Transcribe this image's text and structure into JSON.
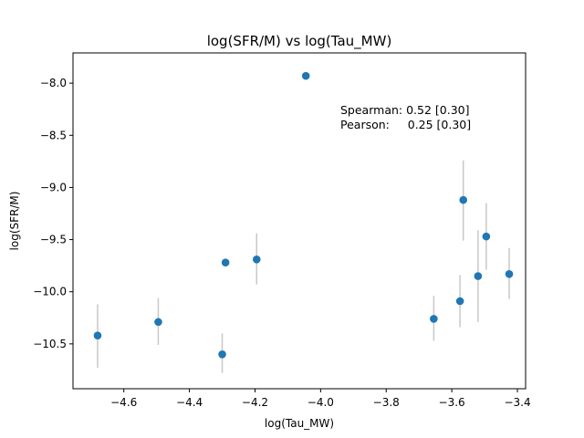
{
  "chart_data": {
    "type": "scatter",
    "title": "log(SFR/M) vs log(Tau_MW)",
    "xlabel": "log(Tau_MW)",
    "ylabel": "log(SFR/M)",
    "xlim": [
      -4.755,
      -3.375
    ],
    "ylim": [
      -10.93,
      -7.71
    ],
    "xticks": [
      -4.6,
      -4.4,
      -4.2,
      -4.0,
      -3.8,
      -3.6,
      -3.4
    ],
    "xtick_labels": [
      "−4.6",
      "−4.4",
      "−4.2",
      "−4.0",
      "−3.8",
      "−3.6",
      "−3.4"
    ],
    "yticks": [
      -10.5,
      -10.0,
      -9.5,
      -9.0,
      -8.5,
      -8.0
    ],
    "ytick_labels": [
      "−10.5",
      "−10.0",
      "−9.5",
      "−9.0",
      "−8.5",
      "−8.0"
    ],
    "grid": false,
    "marker_color": "#1f77b4",
    "errorbar_color": "#c8c8c8",
    "points": [
      {
        "x": -4.68,
        "y": -10.42,
        "yerr_low": 0.31,
        "yerr_high": 0.3
      },
      {
        "x": -4.495,
        "y": -10.29,
        "yerr_low": 0.22,
        "yerr_high": 0.23
      },
      {
        "x": -4.3,
        "y": -10.6,
        "yerr_low": 0.18,
        "yerr_high": 0.2
      },
      {
        "x": -4.29,
        "y": -9.72,
        "yerr_low": 0.0,
        "yerr_high": 0.0
      },
      {
        "x": -4.195,
        "y": -9.69,
        "yerr_low": 0.24,
        "yerr_high": 0.25
      },
      {
        "x": -4.045,
        "y": -7.93,
        "yerr_low": 0.0,
        "yerr_high": 0.0
      },
      {
        "x": -3.655,
        "y": -10.26,
        "yerr_low": 0.21,
        "yerr_high": 0.22
      },
      {
        "x": -3.575,
        "y": -10.09,
        "yerr_low": 0.25,
        "yerr_high": 0.25
      },
      {
        "x": -3.565,
        "y": -9.12,
        "yerr_low": 0.39,
        "yerr_high": 0.38
      },
      {
        "x": -3.52,
        "y": -9.85,
        "yerr_low": 0.44,
        "yerr_high": 0.44
      },
      {
        "x": -3.495,
        "y": -9.47,
        "yerr_low": 0.32,
        "yerr_high": 0.32
      },
      {
        "x": -3.425,
        "y": -9.83,
        "yerr_low": 0.24,
        "yerr_high": 0.25
      }
    ],
    "annotation": {
      "lines": [
        "Spearman: 0.52 [0.30]",
        "Pearson:     0.25 [0.30]"
      ]
    }
  }
}
